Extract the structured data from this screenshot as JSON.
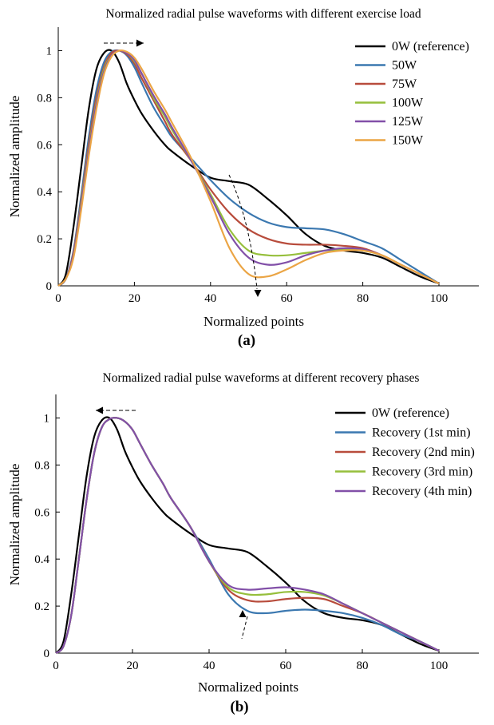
{
  "chart_data": [
    {
      "type": "line",
      "title": "Normalized radial pulse waveforms with different exercise load",
      "xlabel": "Normalized points",
      "ylabel": "Normalized amplitude",
      "panel_label": "(a)",
      "xlim": [
        0,
        100
      ],
      "ylim": [
        0,
        1.1
      ],
      "xticks": [
        0,
        20,
        40,
        60,
        80,
        100
      ],
      "yticks": [
        0,
        0.2,
        0.4,
        0.6,
        0.8,
        1
      ],
      "tick_labels_x": [
        "0",
        "20",
        "40",
        "60",
        "80",
        "100"
      ],
      "tick_labels_y": [
        "0",
        "0.2",
        "0.4",
        "0.6",
        "0.8",
        "1"
      ],
      "legend_position": "top-right",
      "annotations": [
        "dashed arrow at peak pointing right",
        "dashed arrow near x=50 pointing down"
      ],
      "series": [
        {
          "name": "0W (reference)",
          "color": "#000000",
          "x": [
            0,
            2,
            4,
            6,
            8,
            10,
            12,
            14,
            16,
            18,
            20,
            22,
            25,
            28,
            30,
            35,
            40,
            45,
            50,
            55,
            60,
            65,
            70,
            75,
            80,
            85,
            90,
            95,
            100
          ],
          "y": [
            0,
            0.05,
            0.25,
            0.5,
            0.75,
            0.92,
            0.99,
            1.0,
            0.95,
            0.86,
            0.79,
            0.73,
            0.66,
            0.6,
            0.57,
            0.51,
            0.46,
            0.445,
            0.43,
            0.37,
            0.3,
            0.22,
            0.17,
            0.15,
            0.14,
            0.12,
            0.08,
            0.04,
            0.01
          ]
        },
        {
          "name": "50W",
          "color": "#3b78b0",
          "x": [
            0,
            2,
            4,
            6,
            8,
            10,
            12,
            14,
            16,
            18,
            20,
            22,
            25,
            28,
            30,
            35,
            40,
            45,
            50,
            55,
            60,
            65,
            70,
            75,
            80,
            85,
            90,
            95,
            100
          ],
          "y": [
            0,
            0.03,
            0.15,
            0.38,
            0.63,
            0.83,
            0.95,
            0.995,
            1.0,
            0.98,
            0.93,
            0.86,
            0.76,
            0.68,
            0.63,
            0.54,
            0.45,
            0.37,
            0.31,
            0.27,
            0.25,
            0.245,
            0.24,
            0.22,
            0.19,
            0.16,
            0.11,
            0.06,
            0.01
          ]
        },
        {
          "name": "75W",
          "color": "#b84c3c",
          "x": [
            0,
            2,
            4,
            6,
            8,
            10,
            12,
            14,
            16,
            18,
            20,
            22,
            25,
            28,
            30,
            35,
            40,
            45,
            50,
            55,
            60,
            65,
            70,
            75,
            80,
            85,
            90,
            95,
            100
          ],
          "y": [
            0,
            0.03,
            0.14,
            0.36,
            0.6,
            0.8,
            0.93,
            0.99,
            1.0,
            0.985,
            0.945,
            0.88,
            0.79,
            0.7,
            0.64,
            0.53,
            0.41,
            0.31,
            0.24,
            0.2,
            0.18,
            0.175,
            0.175,
            0.17,
            0.16,
            0.13,
            0.09,
            0.05,
            0.01
          ]
        },
        {
          "name": "100W",
          "color": "#96bf3c",
          "x": [
            0,
            2,
            4,
            6,
            8,
            10,
            12,
            14,
            16,
            18,
            20,
            22,
            25,
            28,
            30,
            35,
            40,
            45,
            50,
            55,
            60,
            65,
            70,
            75,
            80,
            85,
            90,
            95,
            100
          ],
          "y": [
            0,
            0.03,
            0.13,
            0.35,
            0.58,
            0.78,
            0.92,
            0.98,
            1.0,
            0.99,
            0.955,
            0.9,
            0.8,
            0.72,
            0.66,
            0.53,
            0.39,
            0.24,
            0.15,
            0.13,
            0.13,
            0.14,
            0.15,
            0.155,
            0.15,
            0.13,
            0.09,
            0.05,
            0.01
          ]
        },
        {
          "name": "125W",
          "color": "#8250a8",
          "x": [
            0,
            2,
            4,
            6,
            8,
            10,
            12,
            14,
            16,
            18,
            20,
            22,
            25,
            28,
            30,
            35,
            40,
            45,
            50,
            55,
            60,
            65,
            70,
            75,
            80,
            85,
            90,
            95,
            100
          ],
          "y": [
            0,
            0.03,
            0.13,
            0.34,
            0.57,
            0.77,
            0.91,
            0.98,
            1.0,
            0.99,
            0.96,
            0.9,
            0.81,
            0.73,
            0.67,
            0.53,
            0.38,
            0.22,
            0.12,
            0.09,
            0.1,
            0.13,
            0.15,
            0.16,
            0.155,
            0.13,
            0.09,
            0.05,
            0.01
          ]
        },
        {
          "name": "150W",
          "color": "#eba545",
          "x": [
            0,
            2,
            4,
            6,
            8,
            10,
            12,
            14,
            16,
            18,
            20,
            22,
            25,
            28,
            30,
            35,
            40,
            45,
            50,
            55,
            60,
            65,
            70,
            75,
            80,
            85,
            90,
            95,
            100
          ],
          "y": [
            0,
            0.03,
            0.12,
            0.32,
            0.55,
            0.75,
            0.9,
            0.975,
            1.0,
            0.995,
            0.97,
            0.92,
            0.83,
            0.75,
            0.69,
            0.54,
            0.36,
            0.16,
            0.05,
            0.04,
            0.07,
            0.11,
            0.14,
            0.15,
            0.15,
            0.13,
            0.09,
            0.05,
            0.01
          ]
        }
      ]
    },
    {
      "type": "line",
      "title": "Normalized radial pulse waveforms at different recovery phases",
      "xlabel": "Normalized points",
      "ylabel": "Normalized amplitude",
      "panel_label": "(b)",
      "xlim": [
        0,
        100
      ],
      "ylim": [
        0,
        1.1
      ],
      "xticks": [
        0,
        20,
        40,
        60,
        80,
        100
      ],
      "yticks": [
        0,
        0.2,
        0.4,
        0.6,
        0.8,
        1
      ],
      "tick_labels_x": [
        "0",
        "20",
        "40",
        "60",
        "80",
        "100"
      ],
      "tick_labels_y": [
        "0",
        "0.2",
        "0.4",
        "0.6",
        "0.8",
        "1"
      ],
      "legend_position": "top-right",
      "annotations": [
        "dashed arrow at peak pointing left",
        "dashed arrow near x=49 pointing up"
      ],
      "series": [
        {
          "name": "0W (reference)",
          "color": "#000000",
          "x": [
            0,
            2,
            4,
            6,
            8,
            10,
            12,
            14,
            16,
            18,
            20,
            22,
            25,
            28,
            30,
            35,
            40,
            45,
            50,
            55,
            60,
            65,
            70,
            75,
            80,
            85,
            90,
            95,
            100
          ],
          "y": [
            0,
            0.05,
            0.25,
            0.5,
            0.75,
            0.92,
            0.99,
            1.0,
            0.95,
            0.86,
            0.79,
            0.73,
            0.66,
            0.6,
            0.57,
            0.51,
            0.46,
            0.445,
            0.43,
            0.37,
            0.3,
            0.22,
            0.17,
            0.15,
            0.14,
            0.12,
            0.08,
            0.04,
            0.01
          ]
        },
        {
          "name": "Recovery (1st min)",
          "color": "#3b78b0",
          "x": [
            0,
            2,
            4,
            6,
            8,
            10,
            12,
            14,
            16,
            18,
            20,
            22,
            25,
            28,
            30,
            35,
            40,
            45,
            50,
            55,
            60,
            65,
            70,
            75,
            80,
            85,
            90,
            95,
            100
          ],
          "y": [
            0,
            0.03,
            0.16,
            0.4,
            0.65,
            0.85,
            0.96,
            0.995,
            1.0,
            0.985,
            0.95,
            0.89,
            0.8,
            0.72,
            0.66,
            0.54,
            0.4,
            0.25,
            0.18,
            0.17,
            0.18,
            0.185,
            0.18,
            0.17,
            0.15,
            0.12,
            0.08,
            0.05,
            0.01
          ]
        },
        {
          "name": "Recovery (2nd min)",
          "color": "#b84c3c",
          "x": [
            0,
            2,
            4,
            6,
            8,
            10,
            12,
            14,
            16,
            18,
            20,
            22,
            25,
            28,
            30,
            35,
            40,
            45,
            50,
            55,
            60,
            65,
            70,
            75,
            80,
            85,
            90,
            95,
            100
          ],
          "y": [
            0,
            0.03,
            0.16,
            0.4,
            0.65,
            0.85,
            0.96,
            0.995,
            1.0,
            0.985,
            0.95,
            0.89,
            0.8,
            0.72,
            0.66,
            0.54,
            0.39,
            0.27,
            0.225,
            0.22,
            0.23,
            0.235,
            0.23,
            0.2,
            0.17,
            0.13,
            0.09,
            0.05,
            0.01
          ]
        },
        {
          "name": "Recovery (3rd min)",
          "color": "#96bf3c",
          "x": [
            0,
            2,
            4,
            6,
            8,
            10,
            12,
            14,
            16,
            18,
            20,
            22,
            25,
            28,
            30,
            35,
            40,
            45,
            50,
            55,
            60,
            65,
            70,
            75,
            80,
            85,
            90,
            95,
            100
          ],
          "y": [
            0,
            0.03,
            0.16,
            0.4,
            0.65,
            0.85,
            0.96,
            0.995,
            1.0,
            0.985,
            0.95,
            0.89,
            0.8,
            0.72,
            0.66,
            0.54,
            0.39,
            0.28,
            0.25,
            0.25,
            0.26,
            0.26,
            0.245,
            0.21,
            0.17,
            0.13,
            0.09,
            0.05,
            0.01
          ]
        },
        {
          "name": "Recovery (4th min)",
          "color": "#8250a8",
          "x": [
            0,
            2,
            4,
            6,
            8,
            10,
            12,
            14,
            16,
            18,
            20,
            22,
            25,
            28,
            30,
            35,
            40,
            45,
            50,
            55,
            60,
            65,
            70,
            75,
            80,
            85,
            90,
            95,
            100
          ],
          "y": [
            0,
            0.03,
            0.16,
            0.4,
            0.65,
            0.85,
            0.96,
            0.995,
            1.0,
            0.985,
            0.95,
            0.89,
            0.8,
            0.72,
            0.66,
            0.54,
            0.39,
            0.29,
            0.27,
            0.275,
            0.28,
            0.27,
            0.25,
            0.21,
            0.17,
            0.13,
            0.09,
            0.05,
            0.01
          ]
        }
      ]
    }
  ]
}
